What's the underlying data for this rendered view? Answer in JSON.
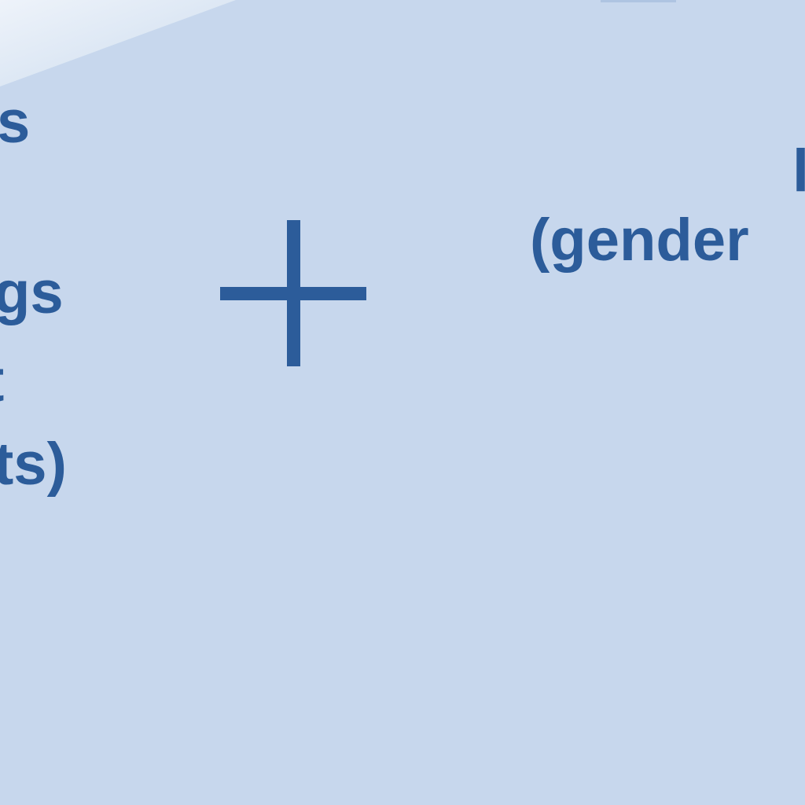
{
  "left_label": {
    "line1": "s",
    "line2": "gs",
    "line3": "t",
    "line4": "ts)"
  },
  "right_label": {
    "line1": "l",
    "line2": "(gender"
  },
  "icons": {
    "center": "plus-icon"
  },
  "colors": {
    "background": "#c7d7ed",
    "text": "#2c5c9a"
  }
}
